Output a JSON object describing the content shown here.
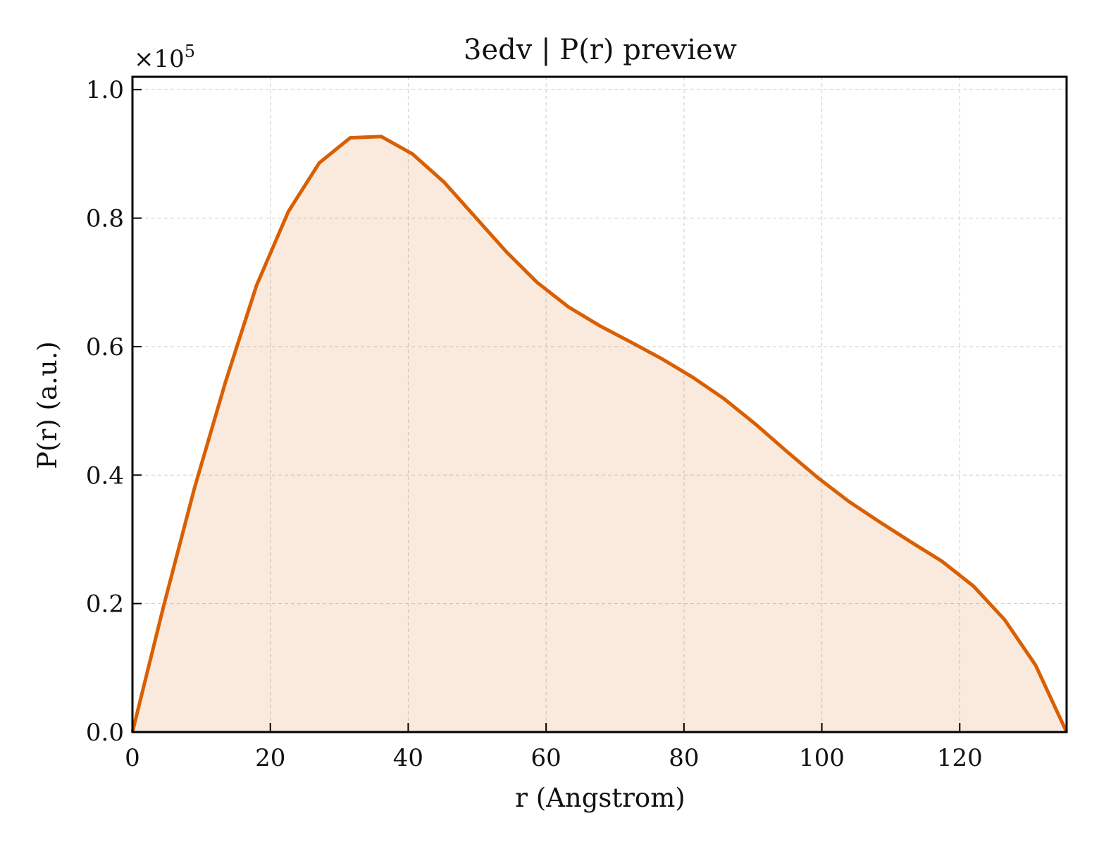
{
  "chart_data": {
    "type": "area",
    "title": "3edv | P(r) preview",
    "xlabel": "r (Angstrom)",
    "ylabel": "P(r) (a.u.)",
    "y_multiplier": "×10",
    "y_multiplier_exponent": "5",
    "xlim": [
      0,
      135.5
    ],
    "ylim": [
      0,
      1.02
    ],
    "grid": true,
    "x_ticks": [
      {
        "value": 0,
        "label": "0"
      },
      {
        "value": 20,
        "label": "20"
      },
      {
        "value": 40,
        "label": "40"
      },
      {
        "value": 60,
        "label": "60"
      },
      {
        "value": 80,
        "label": "80"
      },
      {
        "value": 100,
        "label": "100"
      },
      {
        "value": 120,
        "label": "120"
      }
    ],
    "y_ticks": [
      {
        "value": 0.0,
        "label": "0.0"
      },
      {
        "value": 0.2,
        "label": "0.2"
      },
      {
        "value": 0.4,
        "label": "0.4"
      },
      {
        "value": 0.6,
        "label": "0.6"
      },
      {
        "value": 0.8,
        "label": "0.8"
      },
      {
        "value": 1.0,
        "label": "1.0"
      }
    ],
    "series": [
      {
        "color": "#d95f02",
        "fill_color": "#d95f02",
        "fill_opacity": 0.13,
        "x": [
          0,
          4.5,
          9.0,
          13.5,
          18.0,
          22.6,
          27.1,
          31.6,
          36.1,
          40.6,
          45.2,
          49.7,
          54.2,
          58.7,
          63.2,
          67.7,
          72.3,
          76.8,
          81.3,
          85.8,
          90.3,
          94.9,
          99.4,
          103.9,
          108.4,
          112.9,
          117.4,
          122.0,
          126.5,
          131.0,
          135.5
        ],
        "y": [
          0.0,
          0.195,
          0.38,
          0.545,
          0.695,
          0.81,
          0.886,
          0.925,
          0.927,
          0.9,
          0.856,
          0.802,
          0.748,
          0.7,
          0.662,
          0.633,
          0.607,
          0.581,
          0.552,
          0.519,
          0.48,
          0.437,
          0.396,
          0.359,
          0.327,
          0.296,
          0.266,
          0.227,
          0.175,
          0.104,
          0.0
        ]
      }
    ]
  }
}
